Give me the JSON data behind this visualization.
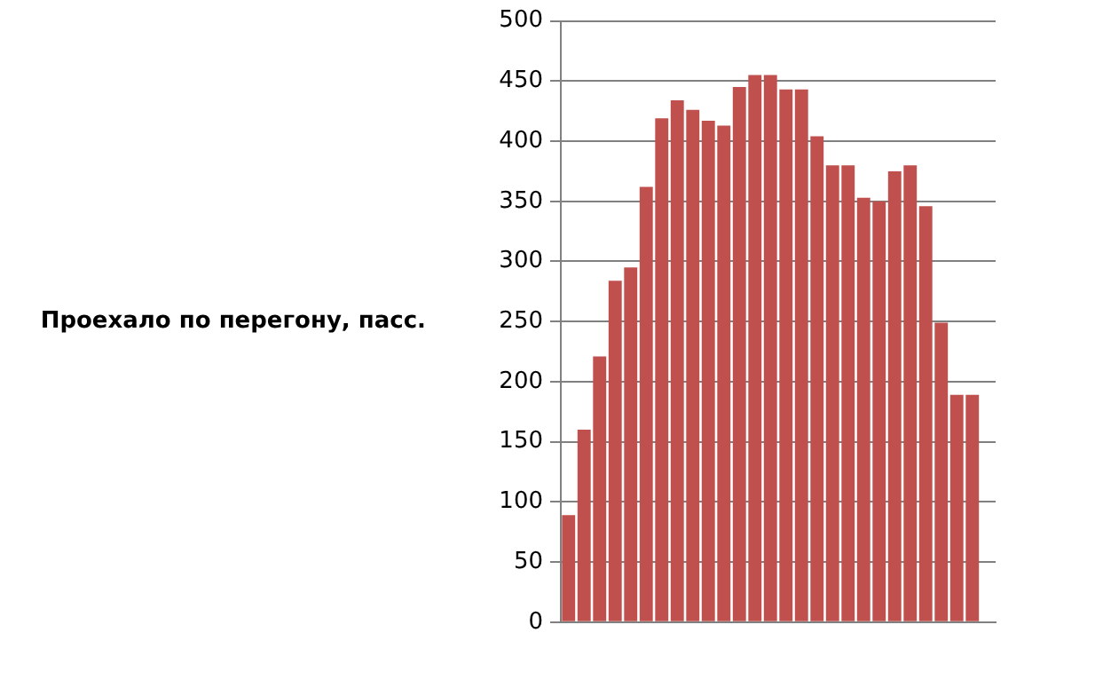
{
  "chart_data": {
    "type": "bar",
    "ylabel": "Проехало по перегону, пасс.",
    "categories": [
      null,
      null,
      null,
      null,
      null,
      null,
      null,
      null,
      null,
      null,
      null,
      null,
      null,
      null,
      null,
      null,
      null,
      null,
      null,
      null,
      null,
      null,
      null,
      null,
      null,
      null,
      null,
      null
    ],
    "values": [
      89,
      160,
      221,
      284,
      295,
      362,
      419,
      434,
      426,
      417,
      413,
      445,
      455,
      455,
      443,
      443,
      404,
      380,
      380,
      353,
      350,
      375,
      380,
      346,
      249,
      189,
      189,
      null
    ],
    "color": "#c0504d",
    "ylim": [
      0,
      500
    ],
    "yticks": [
      0,
      50,
      100,
      150,
      200,
      250,
      300,
      350,
      400,
      450,
      500
    ],
    "grid": "y",
    "legend": false
  }
}
